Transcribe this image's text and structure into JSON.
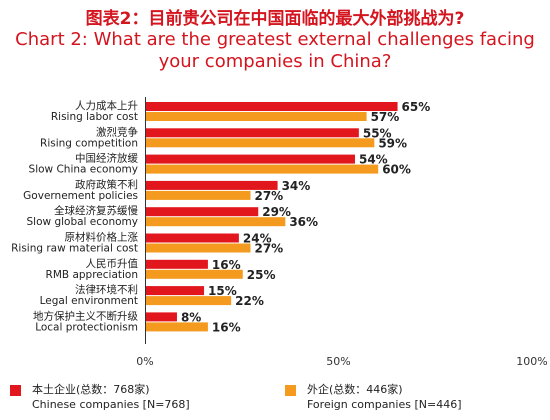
{
  "colors": {
    "chinese": "#e2161d",
    "foreign": "#f39a1f",
    "title": "#d4141e"
  },
  "title_cn": "图表2：目前贵公司在中国面临的最大外部挑战为?",
  "title_en_line1": "Chart 2: What are the greatest external challenges facing",
  "title_en_line2": "your companies in China?",
  "legend": {
    "chinese_cn": "本土企业(总数：768家)",
    "chinese_en": "Chinese companies [N=768]",
    "foreign_cn": "外企(总数：446家)",
    "foreign_en": "Foreign companies [N=446]"
  },
  "chart_data": {
    "type": "bar",
    "orientation": "horizontal",
    "title": "Chart 2: What are the greatest external challenges facing your companies in China?",
    "categories": [
      {
        "cn": "人力成本上升",
        "en": "Rising labor cost"
      },
      {
        "cn": "激烈竞争",
        "en": "Rising competition"
      },
      {
        "cn": "中国经济放缓",
        "en": "Slow China economy"
      },
      {
        "cn": "政府政策不利",
        "en": "Governement policies"
      },
      {
        "cn": "全球经济复苏缓慢",
        "en": "Slow global economy"
      },
      {
        "cn": "原材料价格上涨",
        "en": "Rising raw material cost"
      },
      {
        "cn": "人民币升值",
        "en": "RMB appreciation"
      },
      {
        "cn": "法律环境不利",
        "en": "Legal environment"
      },
      {
        "cn": "地方保护主义不断升级",
        "en": "Local protectionism"
      }
    ],
    "series": [
      {
        "name": "Chinese companies [N=768]",
        "color": "#e2161d",
        "values": [
          65,
          55,
          54,
          34,
          29,
          24,
          16,
          15,
          8
        ]
      },
      {
        "name": "Foreign companies [N=446]",
        "color": "#f39a1f",
        "values": [
          57,
          59,
          60,
          27,
          36,
          27,
          25,
          22,
          16
        ]
      }
    ],
    "xlim": [
      0,
      100
    ],
    "xticks": [
      "0%",
      "50%",
      "100%"
    ],
    "value_suffix": "%",
    "grid": false,
    "legend_position": "bottom"
  }
}
